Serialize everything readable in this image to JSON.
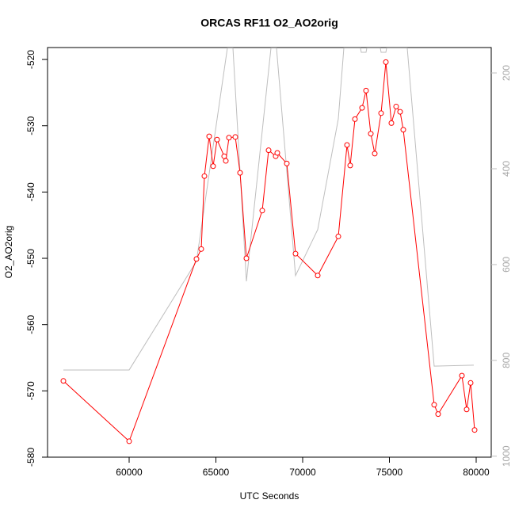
{
  "chart_data": {
    "type": "line",
    "title": "ORCAS RF11 O2_AO2orig",
    "x_label": "UTC Seconds",
    "y_label": "O2_AO2orig",
    "xlim": [
      55297,
      80868
    ],
    "xticks": [
      60000,
      65000,
      70000,
      75000,
      80000
    ],
    "ylim": [
      -580,
      -518.2
    ],
    "yticks": [
      -580,
      -570,
      -560,
      -550,
      -540,
      -530,
      -520
    ],
    "y2lim": [
      1002,
      147
    ],
    "y2ticks": [
      200,
      400,
      600,
      800,
      1000
    ],
    "series": [
      {
        "name": "O2_AO2orig",
        "color": "#ff0000",
        "markers": true,
        "x": [
          56210,
          60000,
          63881,
          64155,
          64338,
          64612,
          64840,
          65068,
          65479,
          65571,
          65753,
          66119,
          66393,
          66758,
          67671,
          68037,
          68447,
          68539,
          69087,
          69589,
          70868,
          72055,
          72557,
          72740,
          73014,
          73425,
          73653,
          73927,
          74155,
          74521,
          74795,
          75114,
          75388,
          75616,
          75799,
          77580,
          77808,
          79178,
          79452,
          79680,
          79909
        ],
        "values": [
          -568.5,
          -577.6,
          -550.1,
          -548.6,
          -537.6,
          -531.6,
          -536.1,
          -532.1,
          -534.6,
          -535.3,
          -531.8,
          -531.7,
          -537.1,
          -550.0,
          -542.8,
          -533.7,
          -534.6,
          -534.1,
          -535.7,
          -549.3,
          -552.6,
          -546.7,
          -532.9,
          -536.0,
          -529.0,
          -527.3,
          -524.7,
          -531.2,
          -534.2,
          -528.1,
          -520.4,
          -529.6,
          -527.1,
          -527.9,
          -530.6,
          -572.1,
          -573.5,
          -567.7,
          -572.8,
          -568.8,
          -575.9
        ]
      },
      {
        "color": "#bebebe",
        "axis": "y2",
        "markers": false,
        "x": [
          56210,
          60000,
          63881,
          65662,
          65982,
          66758,
          68174,
          68493,
          69589,
          70868,
          72055,
          72374,
          73333,
          73379,
          73653,
          73699,
          74475,
          74521,
          74795,
          74840,
          76027,
          77580,
          79863
        ],
        "values": [
          820,
          820,
          593,
          148,
          148,
          635,
          148,
          148,
          623,
          527,
          296,
          148,
          148,
          157,
          157,
          148,
          148,
          157,
          157,
          148,
          148,
          812,
          810
        ]
      }
    ]
  }
}
